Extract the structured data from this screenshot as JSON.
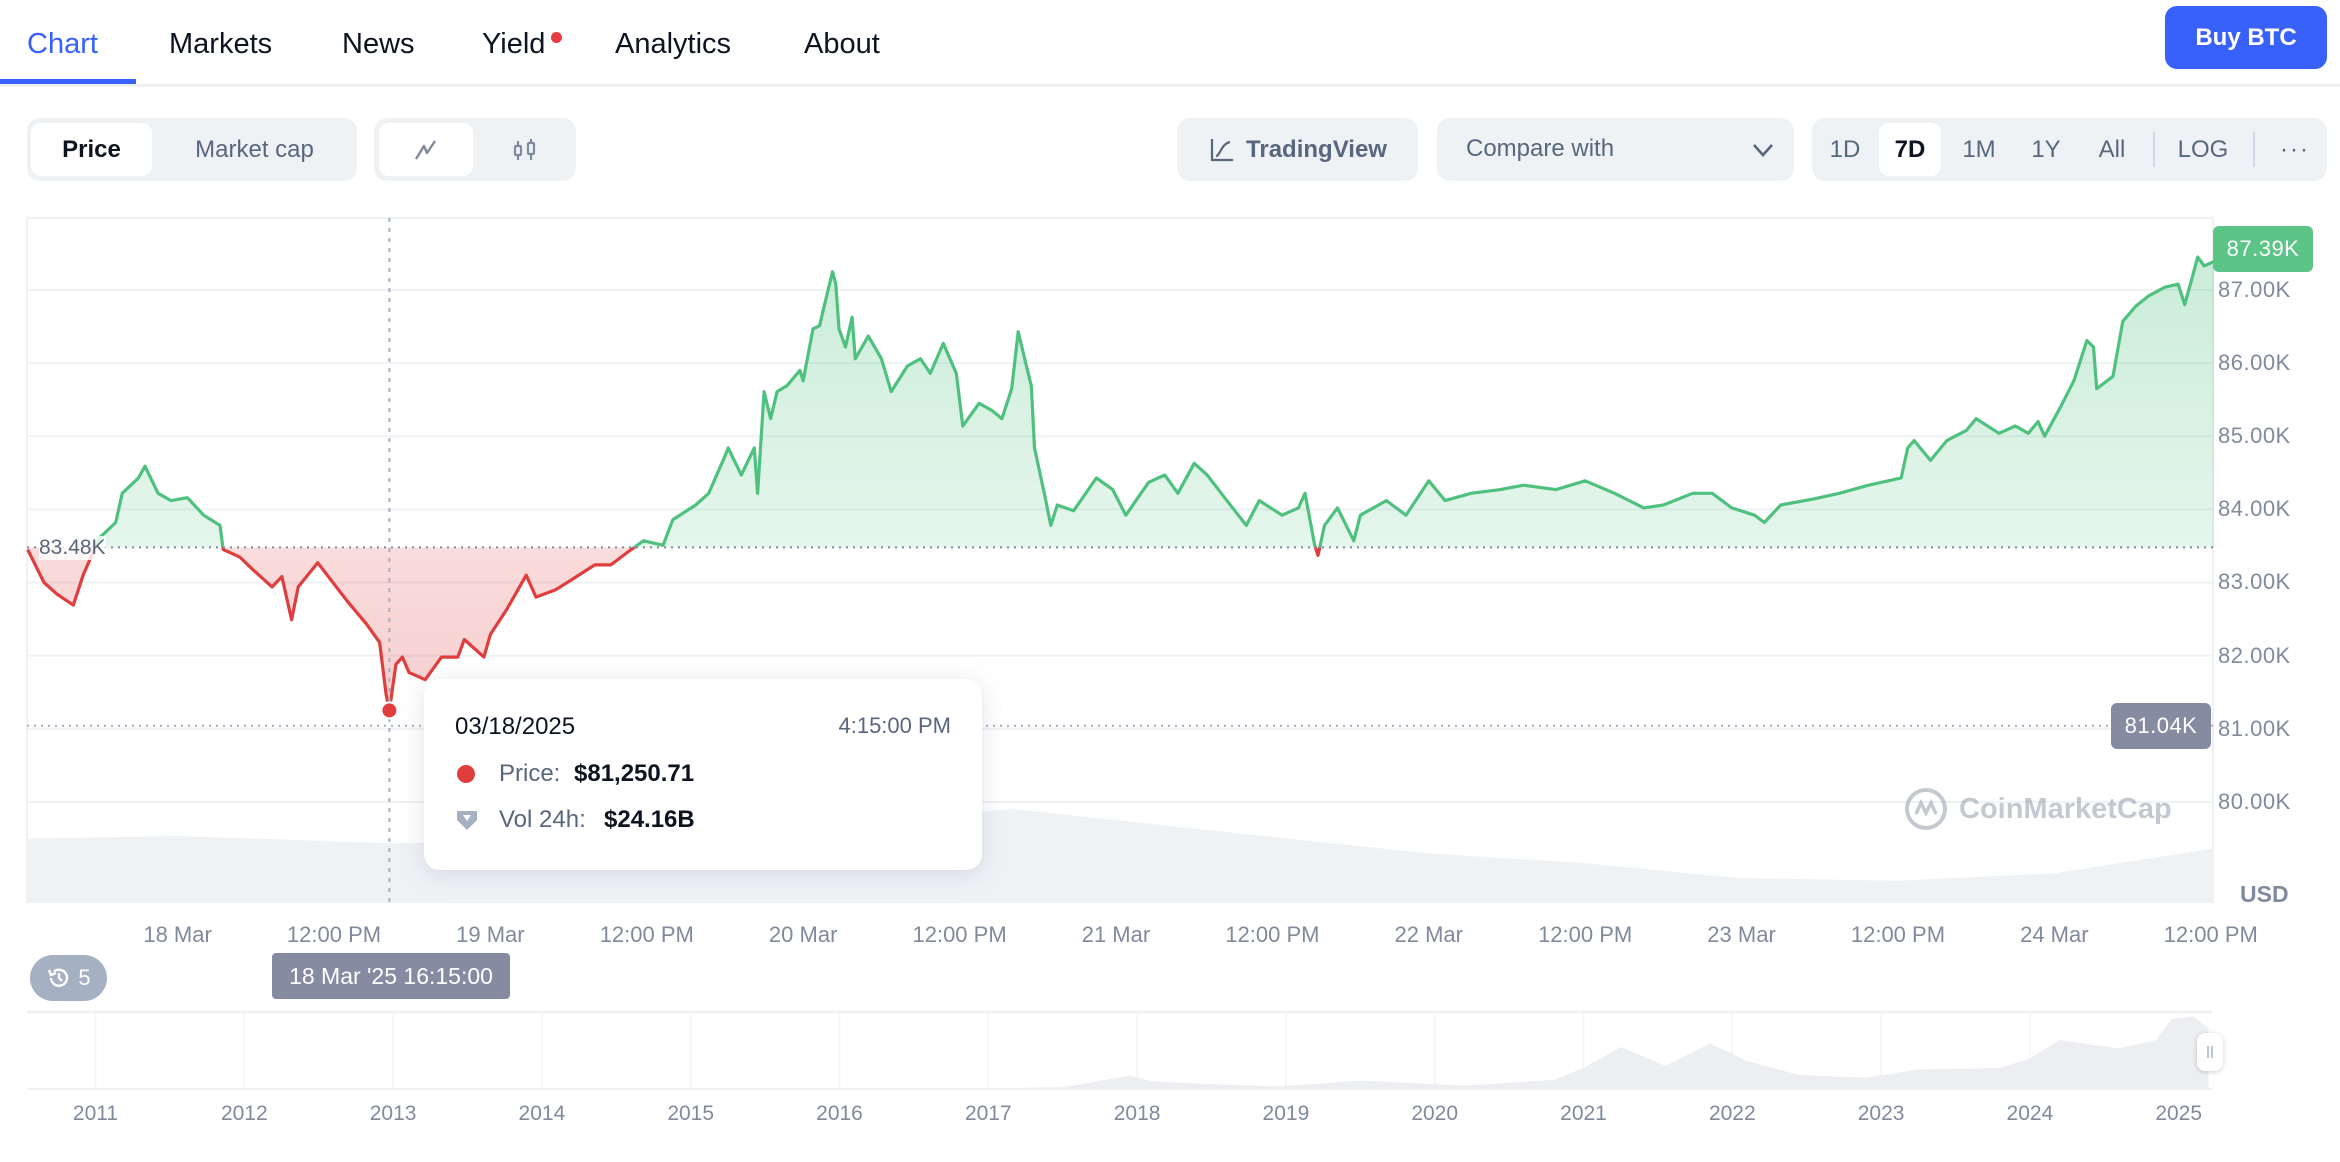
{
  "tabs": [
    {
      "label": "Chart",
      "active": true
    },
    {
      "label": "Markets"
    },
    {
      "label": "News"
    },
    {
      "label": "Yield",
      "badge_dot": true
    },
    {
      "label": "Analytics"
    },
    {
      "label": "About"
    }
  ],
  "buy_button": {
    "label": "Buy BTC",
    "color": "#3861fb"
  },
  "toolbar": {
    "metric": {
      "options": [
        "Price",
        "Market cap"
      ],
      "selected": "Price"
    },
    "chart_type": {
      "options": [
        "line-chart-icon",
        "candlestick-icon"
      ],
      "selected": "line-chart-icon"
    },
    "tradingview_label": "TradingView",
    "compare": {
      "placeholder": "Compare with"
    },
    "ranges": [
      "1D",
      "7D",
      "1M",
      "1Y",
      "All"
    ],
    "selected_range": "7D",
    "log_label": "LOG",
    "more_label": "···"
  },
  "chart_data": {
    "type": "area",
    "currency_label": "USD",
    "baseline": 83480,
    "baseline_label": "83.48K",
    "current_price_label": "87.39K",
    "crosshair_price_label": "81.04K",
    "crosshair_time_label": "18 Mar '25 16:15:00",
    "up_color": "#4fc17f",
    "down_color": "#e03e3e",
    "ylim": [
      79300,
      88000
    ],
    "yticks": [
      {
        "value": 80000,
        "label": "80.00K"
      },
      {
        "value": 81000,
        "label": "81.00K"
      },
      {
        "value": 82000,
        "label": "82.00K"
      },
      {
        "value": 83000,
        "label": "83.00K"
      },
      {
        "value": 84000,
        "label": "84.00K"
      },
      {
        "value": 85000,
        "label": "85.00K"
      },
      {
        "value": 86000,
        "label": "86.00K"
      },
      {
        "value": 87000,
        "label": "87.00K"
      }
    ],
    "xticks": [
      {
        "t": "2025-03-18 00:00",
        "label": "18 Mar"
      },
      {
        "t": "2025-03-18 12:00",
        "label": "12:00 PM"
      },
      {
        "t": "2025-03-19 00:00",
        "label": "19 Mar"
      },
      {
        "t": "2025-03-19 12:00",
        "label": "12:00 PM"
      },
      {
        "t": "2025-03-20 00:00",
        "label": "20 Mar"
      },
      {
        "t": "2025-03-20 12:00",
        "label": "12:00 PM"
      },
      {
        "t": "2025-03-21 00:00",
        "label": "21 Mar"
      },
      {
        "t": "2025-03-21 12:00",
        "label": "12:00 PM"
      },
      {
        "t": "2025-03-22 00:00",
        "label": "22 Mar"
      },
      {
        "t": "2025-03-22 12:00",
        "label": "12:00 PM"
      },
      {
        "t": "2025-03-23 00:00",
        "label": "23 Mar"
      },
      {
        "t": "2025-03-23 12:00",
        "label": "12:00 PM"
      },
      {
        "t": "2025-03-24 00:00",
        "label": "24 Mar"
      },
      {
        "t": "2025-03-24 12:00",
        "label": "12:00 PM"
      }
    ],
    "price": [
      [
        "2025-03-17 12:30",
        83450
      ],
      [
        "2025-03-17 13:45",
        83000
      ],
      [
        "2025-03-17 14:45",
        82840
      ],
      [
        "2025-03-17 16:00",
        82690
      ],
      [
        "2025-03-17 16:45",
        83100
      ],
      [
        "2025-03-17 18:00",
        83610
      ],
      [
        "2025-03-17 19:15",
        83820
      ],
      [
        "2025-03-17 19:45",
        84220
      ],
      [
        "2025-03-17 21:00",
        84430
      ],
      [
        "2025-03-17 21:30",
        84590
      ],
      [
        "2025-03-17 22:30",
        84220
      ],
      [
        "2025-03-17 23:30",
        84120
      ],
      [
        "2025-03-18 00:45",
        84160
      ],
      [
        "2025-03-18 02:00",
        83920
      ],
      [
        "2025-03-18 03:15",
        83780
      ],
      [
        "2025-03-18 03:30",
        83450
      ],
      [
        "2025-03-18 04:45",
        83350
      ],
      [
        "2025-03-18 05:45",
        83180
      ],
      [
        "2025-03-18 07:15",
        82940
      ],
      [
        "2025-03-18 08:00",
        83080
      ],
      [
        "2025-03-18 08:45",
        82490
      ],
      [
        "2025-03-18 09:15",
        82940
      ],
      [
        "2025-03-18 10:45",
        83270
      ],
      [
        "2025-03-18 11:45",
        83040
      ],
      [
        "2025-03-18 13:00",
        82750
      ],
      [
        "2025-03-18 14:30",
        82430
      ],
      [
        "2025-03-18 15:30",
        82180
      ],
      [
        "2025-03-18 16:00",
        81470
      ],
      [
        "2025-03-18 16:15",
        81250.71
      ],
      [
        "2025-03-18 16:45",
        81880
      ],
      [
        "2025-03-18 17:15",
        81980
      ],
      [
        "2025-03-18 17:45",
        81770
      ],
      [
        "2025-03-18 19:00",
        81670
      ],
      [
        "2025-03-18 20:15",
        81980
      ],
      [
        "2025-03-18 21:30",
        81980
      ],
      [
        "2025-03-18 22:00",
        82220
      ],
      [
        "2025-03-18 23:30",
        81980
      ],
      [
        "2025-03-19 00:00",
        82290
      ],
      [
        "2025-03-19 01:15",
        82630
      ],
      [
        "2025-03-19 02:45",
        83100
      ],
      [
        "2025-03-19 03:30",
        82800
      ],
      [
        "2025-03-19 05:00",
        82900
      ],
      [
        "2025-03-19 06:15",
        83040
      ],
      [
        "2025-03-19 08:00",
        83240
      ],
      [
        "2025-03-19 09:15",
        83240
      ],
      [
        "2025-03-19 10:30",
        83410
      ],
      [
        "2025-03-19 11:45",
        83570
      ],
      [
        "2025-03-19 13:15",
        83510
      ],
      [
        "2025-03-19 14:00",
        83860
      ],
      [
        "2025-03-19 15:45",
        84060
      ],
      [
        "2025-03-19 16:45",
        84220
      ],
      [
        "2025-03-19 18:00",
        84730
      ],
      [
        "2025-03-19 18:15",
        84840
      ],
      [
        "2025-03-19 19:15",
        84470
      ],
      [
        "2025-03-19 20:15",
        84840
      ],
      [
        "2025-03-19 20:30",
        84220
      ],
      [
        "2025-03-19 21:00",
        85610
      ],
      [
        "2025-03-19 21:30",
        85240
      ],
      [
        "2025-03-19 22:00",
        85610
      ],
      [
        "2025-03-19 22:45",
        85690
      ],
      [
        "2025-03-19 23:45",
        85900
      ],
      [
        "2025-03-20 00:00",
        85760
      ],
      [
        "2025-03-20 00:45",
        86470
      ],
      [
        "2025-03-20 01:15",
        86510
      ],
      [
        "2025-03-20 01:45",
        86880
      ],
      [
        "2025-03-20 02:15",
        87250
      ],
      [
        "2025-03-20 02:30",
        87080
      ],
      [
        "2025-03-20 02:45",
        86470
      ],
      [
        "2025-03-20 03:15",
        86220
      ],
      [
        "2025-03-20 03:45",
        86630
      ],
      [
        "2025-03-20 04:00",
        86060
      ],
      [
        "2025-03-20 05:00",
        86370
      ],
      [
        "2025-03-20 06:00",
        86060
      ],
      [
        "2025-03-20 06:45",
        85610
      ],
      [
        "2025-03-20 08:00",
        85960
      ],
      [
        "2025-03-20 09:00",
        86060
      ],
      [
        "2025-03-20 09:45",
        85860
      ],
      [
        "2025-03-20 10:45",
        86270
      ],
      [
        "2025-03-20 11:45",
        85860
      ],
      [
        "2025-03-20 12:15",
        85140
      ],
      [
        "2025-03-20 13:30",
        85450
      ],
      [
        "2025-03-20 14:30",
        85350
      ],
      [
        "2025-03-20 15:15",
        85240
      ],
      [
        "2025-03-20 16:00",
        85650
      ],
      [
        "2025-03-20 16:30",
        86430
      ],
      [
        "2025-03-20 17:00",
        86060
      ],
      [
        "2025-03-20 17:30",
        85690
      ],
      [
        "2025-03-20 17:45",
        84840
      ],
      [
        "2025-03-20 18:30",
        84220
      ],
      [
        "2025-03-20 19:00",
        83780
      ],
      [
        "2025-03-20 19:30",
        84060
      ],
      [
        "2025-03-20 20:45",
        83980
      ],
      [
        "2025-03-20 22:30",
        84430
      ],
      [
        "2025-03-20 23:45",
        84270
      ],
      [
        "2025-03-21 00:45",
        83920
      ],
      [
        "2025-03-21 02:30",
        84370
      ],
      [
        "2025-03-21 03:45",
        84470
      ],
      [
        "2025-03-21 04:45",
        84220
      ],
      [
        "2025-03-21 06:00",
        84630
      ],
      [
        "2025-03-21 07:00",
        84470
      ],
      [
        "2025-03-21 08:15",
        84180
      ],
      [
        "2025-03-21 10:00",
        83780
      ],
      [
        "2025-03-21 11:00",
        84120
      ],
      [
        "2025-03-21 12:45",
        83920
      ],
      [
        "2025-03-21 14:00",
        84020
      ],
      [
        "2025-03-21 14:30",
        84220
      ],
      [
        "2025-03-21 15:15",
        83510
      ],
      [
        "2025-03-21 15:30",
        83370
      ],
      [
        "2025-03-21 16:00",
        83780
      ],
      [
        "2025-03-21 17:00",
        84020
      ],
      [
        "2025-03-21 18:15",
        83570
      ],
      [
        "2025-03-21 18:45",
        83920
      ],
      [
        "2025-03-21 20:45",
        84120
      ],
      [
        "2025-03-21 22:15",
        83920
      ],
      [
        "2025-03-22 00:00",
        84390
      ],
      [
        "2025-03-22 01:15",
        84120
      ],
      [
        "2025-03-22 03:15",
        84220
      ],
      [
        "2025-03-22 05:30",
        84270
      ],
      [
        "2025-03-22 07:15",
        84330
      ],
      [
        "2025-03-22 09:45",
        84270
      ],
      [
        "2025-03-22 12:00",
        84390
      ],
      [
        "2025-03-22 14:15",
        84220
      ],
      [
        "2025-03-22 16:30",
        84020
      ],
      [
        "2025-03-22 18:00",
        84060
      ],
      [
        "2025-03-22 20:15",
        84220
      ],
      [
        "2025-03-22 21:45",
        84220
      ],
      [
        "2025-03-22 23:15",
        84020
      ],
      [
        "2025-03-23 01:00",
        83920
      ],
      [
        "2025-03-23 01:45",
        83820
      ],
      [
        "2025-03-23 03:00",
        84060
      ],
      [
        "2025-03-23 05:30",
        84140
      ],
      [
        "2025-03-23 07:30",
        84220
      ],
      [
        "2025-03-23 09:45",
        84330
      ],
      [
        "2025-03-23 12:15",
        84430
      ],
      [
        "2025-03-23 12:45",
        84840
      ],
      [
        "2025-03-23 13:15",
        84940
      ],
      [
        "2025-03-23 14:30",
        84670
      ],
      [
        "2025-03-23 15:45",
        84940
      ],
      [
        "2025-03-23 17:15",
        85080
      ],
      [
        "2025-03-23 18:00",
        85240
      ],
      [
        "2025-03-23 19:45",
        85040
      ],
      [
        "2025-03-23 21:00",
        85140
      ],
      [
        "2025-03-23 22:00",
        85040
      ],
      [
        "2025-03-23 22:45",
        85200
      ],
      [
        "2025-03-23 23:15",
        85000
      ],
      [
        "2025-03-24 00:30",
        85410
      ],
      [
        "2025-03-24 01:30",
        85760
      ],
      [
        "2025-03-24 02:30",
        86310
      ],
      [
        "2025-03-24 03:00",
        86220
      ],
      [
        "2025-03-24 03:15",
        85650
      ],
      [
        "2025-03-24 04:30",
        85820
      ],
      [
        "2025-03-24 05:15",
        86570
      ],
      [
        "2025-03-24 06:15",
        86780
      ],
      [
        "2025-03-24 07:15",
        86920
      ],
      [
        "2025-03-24 08:30",
        87040
      ],
      [
        "2025-03-24 09:30",
        87080
      ],
      [
        "2025-03-24 10:00",
        86800
      ],
      [
        "2025-03-24 10:30",
        87120
      ],
      [
        "2025-03-24 11:00",
        87450
      ],
      [
        "2025-03-24 11:30",
        87330
      ],
      [
        "2025-03-24 12:15",
        87390
      ]
    ],
    "volume_24h_billions": [
      [
        "2025-03-17 12:30",
        26
      ],
      [
        "2025-03-18 00:00",
        27
      ],
      [
        "2025-03-18 16:15",
        24.16
      ],
      [
        "2025-03-19 12:00",
        25
      ],
      [
        "2025-03-20 00:00",
        30
      ],
      [
        "2025-03-20 16:00",
        38
      ],
      [
        "2025-03-21 06:00",
        30
      ],
      [
        "2025-03-22 00:00",
        20
      ],
      [
        "2025-03-22 12:00",
        16
      ],
      [
        "2025-03-23 00:00",
        10
      ],
      [
        "2025-03-23 12:00",
        9
      ],
      [
        "2025-03-24 00:00",
        12
      ],
      [
        "2025-03-24 12:15",
        22
      ]
    ]
  },
  "tooltip": {
    "date": "03/18/2025",
    "time": "4:15:00 PM",
    "price_label": "Price:",
    "price_value": "$81,250.71",
    "vol_label": "Vol 24h:",
    "vol_value": "$24.16B"
  },
  "watermark": "CoinMarketCap",
  "history_badge": {
    "icon": "history-icon",
    "count": "5"
  },
  "navigator": {
    "years": [
      "2011",
      "2012",
      "2013",
      "2014",
      "2015",
      "2016",
      "2017",
      "2018",
      "2019",
      "2020",
      "2021",
      "2022",
      "2023",
      "2024",
      "2025"
    ],
    "series": [
      [
        2010.55,
        0
      ],
      [
        2013.0,
        100
      ],
      [
        2013.9,
        1000
      ],
      [
        2015.0,
        300
      ],
      [
        2017.0,
        1000
      ],
      [
        2017.5,
        2500
      ],
      [
        2017.95,
        19000
      ],
      [
        2018.1,
        11000
      ],
      [
        2018.5,
        7000
      ],
      [
        2018.95,
        3500
      ],
      [
        2019.5,
        12000
      ],
      [
        2020.2,
        5000
      ],
      [
        2020.8,
        13000
      ],
      [
        2021.0,
        30000
      ],
      [
        2021.25,
        60000
      ],
      [
        2021.55,
        33000
      ],
      [
        2021.85,
        65000
      ],
      [
        2022.1,
        40000
      ],
      [
        2022.45,
        20000
      ],
      [
        2022.9,
        16000
      ],
      [
        2023.25,
        28000
      ],
      [
        2023.8,
        30000
      ],
      [
        2024.0,
        44000
      ],
      [
        2024.2,
        70000
      ],
      [
        2024.6,
        58000
      ],
      [
        2024.85,
        70000
      ],
      [
        2024.95,
        100000
      ],
      [
        2025.1,
        104000
      ],
      [
        2025.2,
        87000
      ]
    ]
  }
}
